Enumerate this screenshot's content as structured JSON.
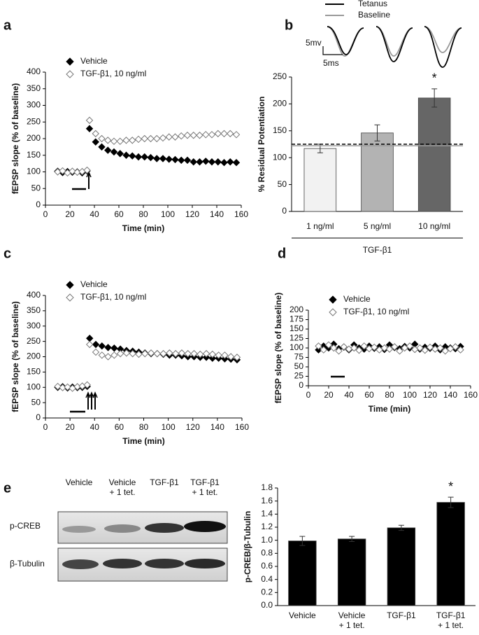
{
  "panel_labels": [
    "a",
    "b",
    "c",
    "d",
    "e"
  ],
  "blot": {
    "lanes": [
      [
        "Vehicle"
      ],
      [
        "Vehicle",
        "+ 1 tet."
      ],
      [
        "TGF-β1"
      ],
      [
        "TGF-β1",
        "+ 1 tet."
      ]
    ],
    "rows": [
      "p-CREB",
      "β-Tubulin"
    ]
  },
  "chart_data": [
    {
      "type": "scatter",
      "xlabel": "Time (min)",
      "ylabel": "fEPSP slope (% of baseline)",
      "legend": "top-left",
      "xlim": [
        0,
        160
      ],
      "xticks": [
        0,
        20,
        40,
        60,
        80,
        100,
        120,
        140,
        160
      ],
      "ylim": [
        0,
        400
      ],
      "yticks": [
        0,
        50,
        100,
        150,
        200,
        250,
        300,
        350,
        400
      ],
      "x": [
        10,
        14,
        18,
        22,
        26,
        30,
        34,
        36,
        41,
        46,
        51,
        56,
        61,
        66,
        71,
        76,
        81,
        86,
        91,
        96,
        101,
        106,
        111,
        116,
        121,
        126,
        131,
        136,
        141,
        146,
        151,
        156
      ],
      "series": [
        {
          "name": "Vehicle",
          "color": "#000000",
          "fill": "#000000",
          "values": [
            102,
            98,
            101,
            99,
            100,
            97,
            103,
            230,
            190,
            175,
            165,
            160,
            155,
            150,
            148,
            145,
            145,
            143,
            140,
            140,
            138,
            137,
            135,
            135,
            130,
            130,
            132,
            130,
            130,
            128,
            130,
            128
          ]
        },
        {
          "name": "TGF-β1, 10 ng/ml",
          "color": "#777777",
          "fill": "#ffffff",
          "values": [
            100,
            103,
            97,
            102,
            99,
            101,
            105,
            255,
            215,
            200,
            195,
            192,
            192,
            195,
            195,
            198,
            200,
            200,
            200,
            202,
            205,
            205,
            208,
            210,
            210,
            210,
            212,
            212,
            215,
            215,
            215,
            212
          ]
        }
      ]
    },
    {
      "type": "bar",
      "ylabel": "% Residual Potentiation",
      "group_label": "TGF-β1",
      "categories": [
        "1 ng/ml",
        "5 ng/ml",
        "10 ng/ml"
      ],
      "values": [
        117,
        146,
        211
      ],
      "errors": [
        8,
        15,
        17
      ],
      "colors": [
        "#f2f2f2",
        "#b3b3b3",
        "#666666"
      ],
      "significance": [
        null,
        null,
        "*"
      ],
      "reference_lines": [
        {
          "value": 125,
          "color": "#000000"
        },
        {
          "value": 122,
          "color": "#999999"
        }
      ],
      "ylim": [
        0,
        250
      ],
      "yticks": [
        0,
        50,
        100,
        150,
        200,
        250
      ],
      "inset_legend": [
        {
          "name": "Tetanus",
          "color": "#000000"
        },
        {
          "name": "Baseline",
          "color": "#999999"
        }
      ],
      "scale_labels": [
        "5mv",
        "5ms"
      ]
    },
    {
      "type": "scatter",
      "xlabel": "Time (min)",
      "ylabel": "fEPSP slope (% of baseline)",
      "legend": "top-left",
      "xlim": [
        0,
        160
      ],
      "xticks": [
        0,
        20,
        40,
        60,
        80,
        100,
        120,
        140,
        160
      ],
      "ylim": [
        0,
        400
      ],
      "yticks": [
        0,
        50,
        100,
        150,
        200,
        250,
        300,
        350,
        400
      ],
      "x": [
        10,
        14,
        18,
        22,
        26,
        30,
        34,
        36,
        41,
        46,
        51,
        56,
        61,
        66,
        71,
        76,
        81,
        86,
        91,
        96,
        101,
        106,
        111,
        116,
        121,
        126,
        131,
        136,
        141,
        146,
        151,
        156
      ],
      "series": [
        {
          "name": "Vehicle",
          "color": "#000000",
          "fill": "#000000",
          "values": [
            100,
            102,
            98,
            101,
            99,
            100,
            103,
            260,
            240,
            235,
            230,
            228,
            225,
            220,
            218,
            215,
            212,
            210,
            210,
            208,
            205,
            205,
            203,
            200,
            200,
            198,
            198,
            195,
            195,
            193,
            192,
            190
          ]
        },
        {
          "name": "TGF-β1, 10 ng/ml",
          "color": "#777777",
          "fill": "#ffffff",
          "values": [
            103,
            99,
            101,
            97,
            102,
            104,
            108,
            240,
            215,
            205,
            200,
            205,
            210,
            212,
            210,
            208,
            210,
            212,
            210,
            210,
            212,
            210,
            212,
            210,
            210,
            208,
            210,
            208,
            205,
            205,
            200,
            198
          ]
        }
      ]
    },
    {
      "type": "scatter",
      "xlabel": "Time (min)",
      "ylabel": "fEPSP slope (% of baseline)",
      "legend": "top-left",
      "xlim": [
        0,
        160
      ],
      "xticks": [
        0,
        20,
        40,
        60,
        80,
        100,
        120,
        140,
        160
      ],
      "ylim": [
        0,
        200
      ],
      "yticks": [
        0,
        25,
        50,
        75,
        100,
        125,
        150,
        175,
        200
      ],
      "x": [
        10,
        15,
        20,
        25,
        30,
        35,
        40,
        45,
        50,
        55,
        60,
        65,
        70,
        75,
        80,
        85,
        90,
        95,
        100,
        105,
        110,
        115,
        120,
        125,
        130,
        135,
        140,
        145,
        150
      ],
      "series": [
        {
          "name": "Vehicle",
          "color": "#000000",
          "fill": "#000000",
          "values": [
            95,
            105,
            100,
            110,
            98,
            102,
            95,
            108,
            100,
            97,
            105,
            99,
            103,
            96,
            108,
            101,
            98,
            104,
            100,
            110,
            97,
            102,
            99,
            105,
            95,
            103,
            100,
            98,
            104
          ]
        },
        {
          "name": "TGF-β1, 10 ng/ml",
          "color": "#777777",
          "fill": "#ffffff",
          "values": [
            105,
            95,
            108,
            100,
            92,
            103,
            97,
            100,
            94,
            105,
            98,
            102,
            95,
            100,
            97,
            103,
            92,
            100,
            105,
            96,
            100,
            94,
            102,
            97,
            100,
            92,
            98,
            103,
            95
          ]
        }
      ]
    },
    {
      "type": "bar",
      "ylabel": "p-CREB/β-Tubulin",
      "color": "#000000",
      "categories": [
        [
          "Vehicle"
        ],
        [
          "Vehicle",
          "+ 1 tet."
        ],
        [
          "TGF-β1"
        ],
        [
          "TGF-β1",
          "+ 1 tet."
        ]
      ],
      "values": [
        0.99,
        1.02,
        1.19,
        1.58
      ],
      "errors": [
        0.07,
        0.04,
        0.04,
        0.08
      ],
      "significance": [
        null,
        null,
        null,
        "*"
      ],
      "ylim": [
        0,
        1.8
      ],
      "yticks": [
        {
          "value": 0,
          "label": "0.0"
        },
        0.2,
        0.4,
        0.6,
        0.8,
        {
          "value": 1,
          "label": "1.0"
        },
        1.2,
        1.4,
        1.6,
        1.8
      ]
    }
  ]
}
